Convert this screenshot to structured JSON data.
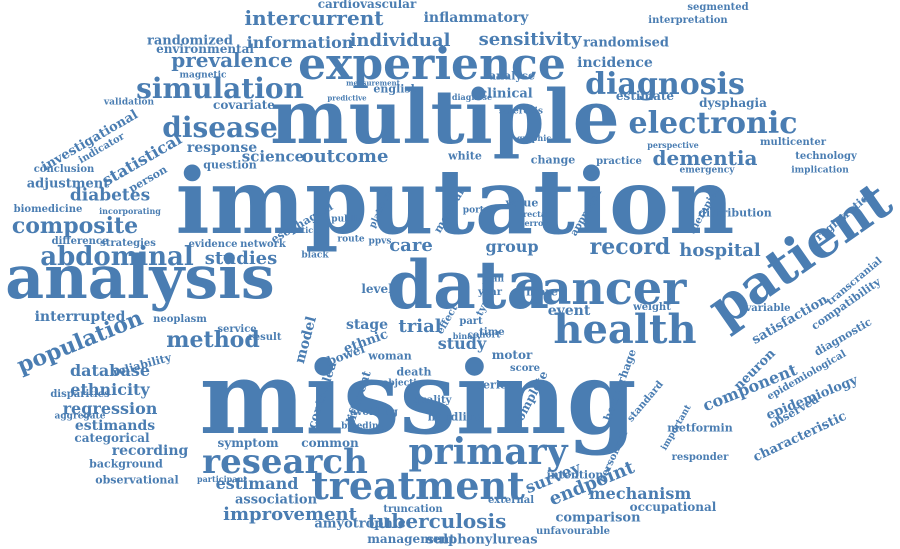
{
  "color": "#4a7db2",
  "words": [
    {
      "t": "missing"
    },
    {
      "t": "imputation"
    },
    {
      "t": "multiple"
    },
    {
      "t": "data"
    },
    {
      "t": "analysis"
    },
    {
      "t": "patient"
    },
    {
      "t": "cancer"
    },
    {
      "t": "experience"
    },
    {
      "t": "health"
    },
    {
      "t": "treatment"
    },
    {
      "t": "primary"
    },
    {
      "t": "research"
    },
    {
      "t": "electronic"
    },
    {
      "t": "diagnosis"
    },
    {
      "t": "simulation"
    },
    {
      "t": "disease"
    },
    {
      "t": "abdominal"
    },
    {
      "t": "population"
    },
    {
      "t": "composite"
    },
    {
      "t": "method"
    },
    {
      "t": "record"
    },
    {
      "t": "tuberculosis"
    },
    {
      "t": "improvement"
    },
    {
      "t": "dementia"
    },
    {
      "t": "outcome"
    },
    {
      "t": "survey"
    },
    {
      "t": "component"
    },
    {
      "t": "endpoint"
    },
    {
      "t": "trial"
    },
    {
      "t": "care"
    },
    {
      "t": "hospital"
    },
    {
      "t": "prevalence"
    },
    {
      "t": "intercurrent"
    },
    {
      "t": "individual"
    },
    {
      "t": "sensitivity"
    },
    {
      "t": "information"
    },
    {
      "t": "inflammatory"
    },
    {
      "t": "randomized"
    },
    {
      "t": "randomised"
    },
    {
      "t": "incidence"
    },
    {
      "t": "statistical"
    },
    {
      "t": "diabetes"
    },
    {
      "t": "studies"
    },
    {
      "t": "science"
    },
    {
      "t": "response"
    },
    {
      "t": "database"
    },
    {
      "t": "ethnicity"
    },
    {
      "t": "regression"
    },
    {
      "t": "estimands"
    },
    {
      "t": "recording"
    },
    {
      "t": "estimand"
    },
    {
      "t": "association"
    },
    {
      "t": "mechanism"
    },
    {
      "t": "satisfaction"
    },
    {
      "t": "group"
    },
    {
      "t": "study"
    },
    {
      "t": "stage"
    },
    {
      "t": "event"
    },
    {
      "t": "model"
    },
    {
      "t": "ethnic"
    },
    {
      "t": "interrupted"
    },
    {
      "t": "adjustment"
    },
    {
      "t": "investigational"
    },
    {
      "t": "environmental"
    },
    {
      "t": "cardiovascular"
    },
    {
      "t": "covariate"
    },
    {
      "t": "estimate"
    },
    {
      "t": "dysphagia"
    },
    {
      "t": "question"
    },
    {
      "t": "change"
    },
    {
      "t": "symptom"
    },
    {
      "t": "common"
    },
    {
      "t": "categorical"
    },
    {
      "t": "background"
    },
    {
      "t": "observational"
    },
    {
      "t": "amyotrophic"
    },
    {
      "t": "sulphonylureas"
    },
    {
      "t": "management"
    },
    {
      "t": "comparison"
    },
    {
      "t": "occupational"
    },
    {
      "t": "characteristic"
    },
    {
      "t": "epidemiology"
    },
    {
      "t": "neuron"
    },
    {
      "t": "bowel"
    },
    {
      "t": "reliability"
    },
    {
      "t": "metformin"
    },
    {
      "t": "responder"
    },
    {
      "t": "hemorrhage"
    },
    {
      "t": "registration"
    },
    {
      "t": "diagnostic"
    },
    {
      "t": "compatibility"
    },
    {
      "t": "transcranial"
    },
    {
      "t": "technology"
    },
    {
      "t": "multicenter"
    },
    {
      "t": "distribution"
    },
    {
      "t": "practice"
    },
    {
      "t": "clinical"
    },
    {
      "t": "analyse"
    },
    {
      "t": "english"
    },
    {
      "t": "conclusion"
    },
    {
      "t": "indicator"
    },
    {
      "t": "person"
    },
    {
      "t": "biomedicine"
    },
    {
      "t": "strategies"
    },
    {
      "t": "difference"
    },
    {
      "t": "evidence"
    },
    {
      "t": "network"
    },
    {
      "t": "disparities"
    },
    {
      "t": "aggregate"
    },
    {
      "t": "neoplasm"
    },
    {
      "t": "service"
    },
    {
      "t": "result"
    },
    {
      "t": "controlled"
    },
    {
      "t": "different"
    },
    {
      "t": "complete"
    },
    {
      "t": "level"
    },
    {
      "t": "woman"
    },
    {
      "t": "motor"
    },
    {
      "t": "more"
    },
    {
      "t": "weight"
    },
    {
      "t": "variable"
    },
    {
      "t": "standard"
    },
    {
      "t": "epidemiological"
    },
    {
      "t": "observed"
    },
    {
      "t": "segmented"
    },
    {
      "t": "interpretation"
    },
    {
      "t": "magnetic"
    },
    {
      "t": "validation"
    },
    {
      "t": "esophageal"
    },
    {
      "t": "white"
    },
    {
      "t": "incorporating"
    },
    {
      "t": "score"
    },
    {
      "t": "quality"
    },
    {
      "t": "handling"
    },
    {
      "t": "series"
    },
    {
      "t": "truncation"
    },
    {
      "t": "external"
    },
    {
      "t": "intention"
    },
    {
      "t": "participant"
    },
    {
      "t": "personnel"
    },
    {
      "t": "unfavourable"
    },
    {
      "t": "important"
    },
    {
      "t": "implication"
    },
    {
      "t": "therapies"
    },
    {
      "t": "sclerosis"
    },
    {
      "t": "diagnose"
    },
    {
      "t": "predictive"
    },
    {
      "t": "measurement"
    },
    {
      "t": "graphic"
    },
    {
      "t": "perspective"
    },
    {
      "t": "emergency"
    },
    {
      "t": "objective"
    },
    {
      "t": "death"
    },
    {
      "t": "bleeding"
    },
    {
      "t": "avoiding"
    },
    {
      "t": "cohort"
    },
    {
      "t": "binary"
    },
    {
      "t": "part"
    },
    {
      "t": "type"
    },
    {
      "t": "time"
    },
    {
      "t": "year"
    },
    {
      "t": "plan"
    },
    {
      "t": "effect"
    },
    {
      "t": "route"
    },
    {
      "t": "black"
    },
    {
      "t": "statistic"
    },
    {
      "t": "value"
    },
    {
      "t": "rectal"
    },
    {
      "t": "error"
    },
    {
      "t": "approach"
    },
    {
      "t": "public"
    },
    {
      "t": "platform"
    },
    {
      "t": "ppvs"
    },
    {
      "t": "medical"
    },
    {
      "t": "portal"
    },
    {
      "t": "pain"
    },
    {
      "t": "habit"
    },
    {
      "t": "mixed"
    },
    {
      "t": "several"
    },
    {
      "t": "number"
    },
    {
      "t": "tumour"
    },
    {
      "t": "asian"
    },
    {
      "t": "higher"
    },
    {
      "t": "lateral"
    },
    {
      "t": "mmar"
    }
  ]
}
